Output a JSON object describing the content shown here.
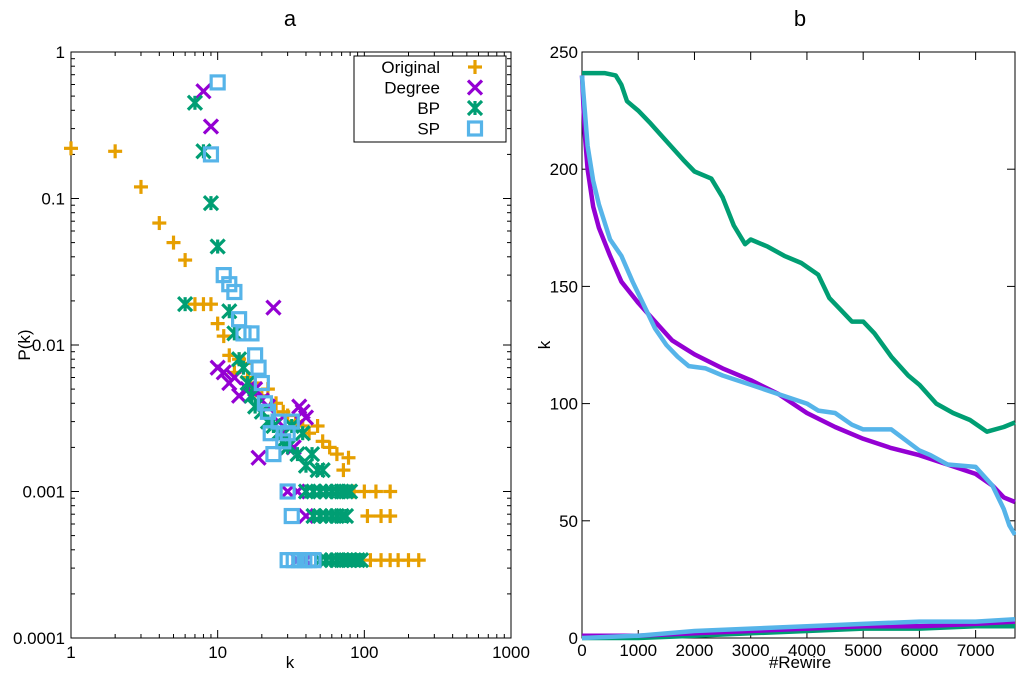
{
  "chart_data": [
    {
      "type": "scatter",
      "title": "a",
      "xlabel": "k",
      "ylabel": "P(k)",
      "x_scale": "log",
      "y_scale": "log",
      "xlim": [
        1,
        1000
      ],
      "ylim": [
        0.0001,
        1
      ],
      "x_ticks": [
        "1",
        "10",
        "100",
        "1000"
      ],
      "y_ticks": [
        "0.0001",
        "0.001",
        "0.01",
        "0.1",
        "1"
      ],
      "legend_position": "top-right",
      "series": [
        {
          "name": "Original",
          "color": "#e69f00",
          "marker": "plus",
          "points": [
            [
              1,
              0.22
            ],
            [
              2,
              0.21
            ],
            [
              3,
              0.12
            ],
            [
              4,
              0.068
            ],
            [
              5,
              0.05
            ],
            [
              6,
              0.038
            ],
            [
              7,
              0.019
            ],
            [
              8,
              0.019
            ],
            [
              9,
              0.019
            ],
            [
              10,
              0.014
            ],
            [
              11,
              0.0115
            ],
            [
              12,
              0.0085
            ],
            [
              13,
              0.0065
            ],
            [
              14,
              0.008
            ],
            [
              15,
              0.0075
            ],
            [
              16,
              0.006
            ],
            [
              17,
              0.005
            ],
            [
              18,
              0.0055
            ],
            [
              20,
              0.0045
            ],
            [
              22,
              0.005
            ],
            [
              25,
              0.004
            ],
            [
              28,
              0.0035
            ],
            [
              30,
              0.0033
            ],
            [
              34,
              0.003
            ],
            [
              38,
              0.0028
            ],
            [
              42,
              0.0025
            ],
            [
              48,
              0.0028
            ],
            [
              52,
              0.0022
            ],
            [
              58,
              0.002
            ],
            [
              65,
              0.0018
            ],
            [
              72,
              0.0014
            ],
            [
              78,
              0.0017
            ],
            [
              85,
              0.001
            ],
            [
              100,
              0.001
            ],
            [
              105,
              0.00068
            ],
            [
              120,
              0.001
            ],
            [
              150,
              0.001
            ],
            [
              130,
              0.00068
            ],
            [
              150,
              0.00068
            ],
            [
              110,
              0.00034
            ],
            [
              130,
              0.00034
            ],
            [
              150,
              0.00034
            ],
            [
              170,
              0.00034
            ],
            [
              200,
              0.00034
            ],
            [
              235,
              0.00034
            ]
          ]
        },
        {
          "name": "Degree",
          "color": "#9400d3",
          "marker": "x",
          "points": [
            [
              8,
              0.54
            ],
            [
              9,
              0.31
            ],
            [
              10,
              0.007
            ],
            [
              11,
              0.0065
            ],
            [
              12,
              0.0055
            ],
            [
              13,
              0.006
            ],
            [
              14,
              0.0045
            ],
            [
              16,
              0.005
            ],
            [
              18,
              0.005
            ],
            [
              20,
              0.0042
            ],
            [
              22,
              0.0038
            ],
            [
              24,
              0.018
            ],
            [
              26,
              0.003
            ],
            [
              28,
              0.0025
            ],
            [
              30,
              0.002
            ],
            [
              33,
              0.002
            ],
            [
              36,
              0.0038
            ],
            [
              38,
              0.0035
            ],
            [
              40,
              0.0032
            ],
            [
              19,
              0.0017
            ],
            [
              30,
              0.001
            ],
            [
              35,
              0.001
            ],
            [
              40,
              0.00068
            ],
            [
              35,
              0.00034
            ],
            [
              40,
              0.00034
            ]
          ]
        },
        {
          "name": "BP",
          "color": "#009e73",
          "marker": "star",
          "points": [
            [
              7,
              0.45
            ],
            [
              8,
              0.21
            ],
            [
              9,
              0.093
            ],
            [
              10,
              0.047
            ],
            [
              6,
              0.019
            ],
            [
              12,
              0.017
            ],
            [
              13,
              0.012
            ],
            [
              14,
              0.008
            ],
            [
              15,
              0.007
            ],
            [
              16,
              0.0055
            ],
            [
              17,
              0.0045
            ],
            [
              18,
              0.0038
            ],
            [
              20,
              0.0035
            ],
            [
              22,
              0.003
            ],
            [
              24,
              0.0028
            ],
            [
              26,
              0.0025
            ],
            [
              28,
              0.0022
            ],
            [
              30,
              0.002
            ],
            [
              32,
              0.0028
            ],
            [
              35,
              0.0018
            ],
            [
              38,
              0.0025
            ],
            [
              40,
              0.0015
            ],
            [
              44,
              0.0018
            ],
            [
              48,
              0.0014
            ],
            [
              52,
              0.0014
            ],
            [
              40,
              0.001
            ],
            [
              45,
              0.001
            ],
            [
              50,
              0.001
            ],
            [
              55,
              0.001
            ],
            [
              60,
              0.001
            ],
            [
              65,
              0.001
            ],
            [
              70,
              0.001
            ],
            [
              75,
              0.001
            ],
            [
              80,
              0.001
            ],
            [
              45,
              0.00068
            ],
            [
              50,
              0.00068
            ],
            [
              55,
              0.00068
            ],
            [
              60,
              0.00068
            ],
            [
              65,
              0.00068
            ],
            [
              70,
              0.00068
            ],
            [
              75,
              0.00068
            ],
            [
              50,
              0.00034
            ],
            [
              55,
              0.00034
            ],
            [
              60,
              0.00034
            ],
            [
              65,
              0.00034
            ],
            [
              70,
              0.00034
            ],
            [
              75,
              0.00034
            ],
            [
              80,
              0.00034
            ],
            [
              85,
              0.00034
            ],
            [
              90,
              0.00034
            ],
            [
              95,
              0.00034
            ]
          ]
        },
        {
          "name": "SP",
          "color": "#56b4e9",
          "marker": "square",
          "points": [
            [
              10,
              0.62
            ],
            [
              9,
              0.2
            ],
            [
              11,
              0.03
            ],
            [
              12,
              0.026
            ],
            [
              13,
              0.023
            ],
            [
              14,
              0.015
            ],
            [
              15,
              0.012
            ],
            [
              17,
              0.012
            ],
            [
              18,
              0.0085
            ],
            [
              19,
              0.007
            ],
            [
              20,
              0.0055
            ],
            [
              21,
              0.004
            ],
            [
              22,
              0.0035
            ],
            [
              23,
              0.0025
            ],
            [
              24,
              0.0018
            ],
            [
              26,
              0.003
            ],
            [
              28,
              0.0022
            ],
            [
              30,
              0.0025
            ],
            [
              32,
              0.003
            ],
            [
              30,
              0.001
            ],
            [
              32,
              0.00068
            ],
            [
              30,
              0.00034
            ],
            [
              33,
              0.00034
            ],
            [
              36,
              0.00034
            ],
            [
              39,
              0.00034
            ],
            [
              42,
              0.00034
            ],
            [
              45,
              0.00034
            ]
          ]
        }
      ]
    },
    {
      "type": "line",
      "title": "b",
      "xlabel": "#Rewire",
      "ylabel": "k",
      "xlim": [
        0,
        7700
      ],
      "ylim": [
        0,
        250
      ],
      "x_ticks": [
        0,
        1000,
        2000,
        3000,
        4000,
        5000,
        6000,
        7000
      ],
      "y_ticks": [
        0,
        50,
        100,
        150,
        200,
        250
      ],
      "series": [
        {
          "color": "#009e73",
          "x": [
            0,
            200,
            400,
            600,
            700,
            800,
            1000,
            1200,
            1500,
            1800,
            2000,
            2300,
            2500,
            2700,
            2900,
            3000,
            3300,
            3600,
            3900,
            4200,
            4400,
            4600,
            4800,
            5000,
            5200,
            5500,
            5800,
            6000,
            6300,
            6600,
            6900,
            7200,
            7500,
            7700
          ],
          "y": [
            241,
            241,
            241,
            240,
            236,
            229,
            225,
            220,
            212,
            204,
            199,
            196,
            188,
            176,
            168,
            170,
            167,
            163,
            160,
            155,
            145,
            140,
            135,
            135,
            130,
            120,
            112,
            108,
            100,
            96,
            93,
            88,
            90,
            92
          ]
        },
        {
          "color": "#9400d3",
          "x": [
            0,
            50,
            100,
            200,
            300,
            500,
            700,
            1000,
            1300,
            1600,
            2000,
            2500,
            3000,
            3500,
            4000,
            4500,
            5000,
            5500,
            6000,
            6500,
            7000,
            7300,
            7500,
            7700
          ],
          "y": [
            240,
            215,
            200,
            184,
            175,
            163,
            152,
            143,
            135,
            127,
            121,
            115,
            110,
            104,
            96,
            90,
            85,
            81,
            78,
            74,
            70,
            65,
            60,
            58
          ]
        },
        {
          "color": "#56b4e9",
          "x": [
            0,
            50,
            100,
            200,
            300,
            500,
            700,
            900,
            1100,
            1300,
            1500,
            1700,
            1900,
            2200,
            2500,
            3000,
            3500,
            4000,
            4200,
            4500,
            4800,
            5000,
            5500,
            6000,
            6200,
            6500,
            7000,
            7300,
            7500,
            7600,
            7700
          ],
          "y": [
            240,
            225,
            210,
            195,
            185,
            170,
            163,
            152,
            142,
            132,
            125,
            120,
            116,
            115,
            112,
            108,
            104,
            100,
            97,
            96,
            91,
            89,
            89,
            80,
            78,
            74,
            73,
            65,
            55,
            48,
            44
          ]
        },
        {
          "color": "#009e73",
          "x": [
            0,
            1000,
            2000,
            3000,
            4000,
            5000,
            6000,
            7000,
            7700
          ],
          "y": [
            0,
            0,
            1,
            2,
            3,
            4,
            4,
            5,
            5
          ]
        },
        {
          "color": "#9400d3",
          "x": [
            0,
            1000,
            2000,
            3000,
            4000,
            5000,
            6000,
            7000,
            7700
          ],
          "y": [
            1,
            1,
            2,
            3,
            4,
            5,
            5,
            6,
            7
          ]
        },
        {
          "color": "#56b4e9",
          "x": [
            0,
            1000,
            2000,
            3000,
            4000,
            5000,
            6000,
            7000,
            7700
          ],
          "y": [
            0,
            1,
            3,
            4,
            5,
            6,
            7,
            7,
            8
          ]
        }
      ]
    }
  ]
}
